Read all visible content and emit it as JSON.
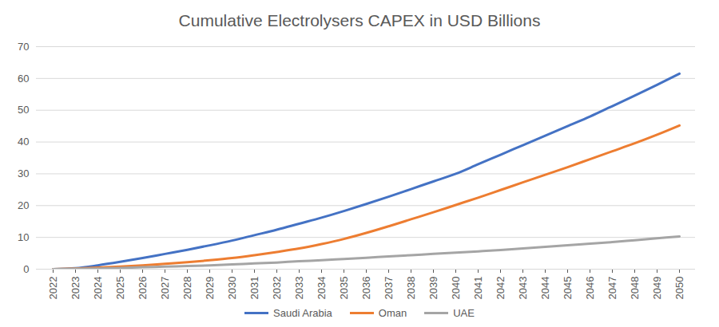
{
  "chart_data": {
    "type": "line",
    "title": "Cumulative Electrolysers CAPEX in USD Billions",
    "categories": [
      "2022",
      "2023",
      "2024",
      "2025",
      "2026",
      "2027",
      "2028",
      "2029",
      "2030",
      "2031",
      "2032",
      "2033",
      "2034",
      "2035",
      "2036",
      "2037",
      "2038",
      "2039",
      "2040",
      "2041",
      "2042",
      "2043",
      "2044",
      "2045",
      "2046",
      "2047",
      "2048",
      "2049",
      "2050"
    ],
    "series": [
      {
        "name": "Saudi Arabia",
        "color": "#4472c4",
        "values": [
          0,
          0.3,
          1.2,
          2.3,
          3.5,
          4.8,
          6.1,
          7.5,
          9.0,
          10.7,
          12.4,
          14.3,
          16.2,
          18.3,
          20.5,
          22.8,
          25.2,
          27.6,
          30.0,
          33.0,
          36.0,
          39.0,
          42.0,
          45.0,
          48.0,
          51.3,
          54.6,
          58.0,
          61.5
        ]
      },
      {
        "name": "Oman",
        "color": "#ed7d31",
        "values": [
          0,
          0.2,
          0.5,
          0.8,
          1.2,
          1.7,
          2.2,
          2.8,
          3.5,
          4.4,
          5.4,
          6.5,
          7.9,
          9.5,
          11.4,
          13.5,
          15.7,
          17.9,
          20.2,
          22.5,
          24.9,
          27.3,
          29.7,
          32.1,
          34.6,
          37.1,
          39.6,
          42.3,
          45.2
        ]
      },
      {
        "name": "UAE",
        "color": "#a5a5a5",
        "values": [
          0,
          0.1,
          0.2,
          0.4,
          0.6,
          0.8,
          1.0,
          1.2,
          1.5,
          1.8,
          2.1,
          2.5,
          2.8,
          3.2,
          3.6,
          4.0,
          4.4,
          4.8,
          5.2,
          5.6,
          6.0,
          6.5,
          7.0,
          7.5,
          8.0,
          8.5,
          9.1,
          9.7,
          10.3
        ]
      }
    ],
    "ylim": [
      0,
      70
    ],
    "yticks": [
      0,
      10,
      20,
      30,
      40,
      50,
      60,
      70
    ],
    "grid": true,
    "legend": "bottom"
  }
}
